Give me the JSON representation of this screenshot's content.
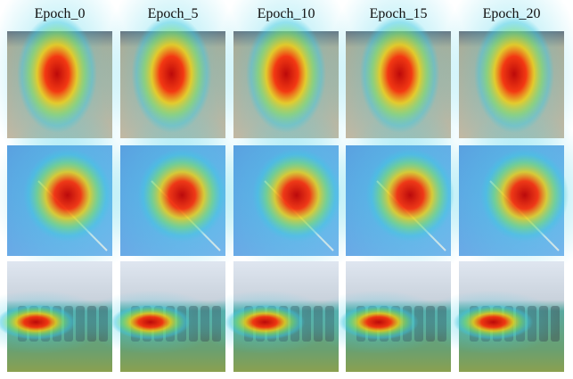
{
  "header": {
    "columns": [
      "Epoch_0",
      "Epoch_5",
      "Epoch_10",
      "Epoch_15",
      "Epoch_20"
    ]
  }
}
